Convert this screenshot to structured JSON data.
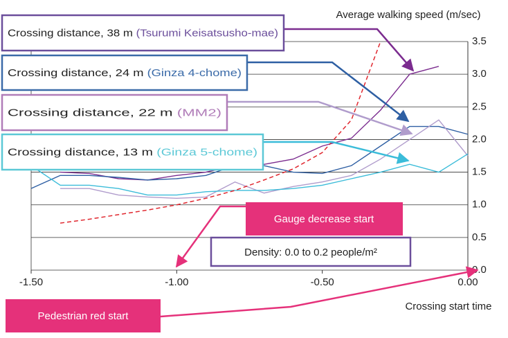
{
  "chart_data": {
    "type": "line",
    "y_label": "Average walking speed (m/sec)",
    "x_label": "Crossing start time",
    "x": [
      -1.5,
      -1.4,
      -1.3,
      -1.2,
      -1.1,
      -1.0,
      -0.9,
      -0.8,
      -0.7,
      -0.6,
      -0.5,
      -0.4,
      -0.3,
      -0.2,
      -0.1,
      0.0
    ],
    "series": [
      {
        "name": "Crossing distance, 38 m",
        "location": "(Tsurumi Keisatsusho-mae)",
        "color": "#7b2c8f",
        "border": "#6b4e9b",
        "values": [
          null,
          1.5,
          1.48,
          1.4,
          1.38,
          1.45,
          1.5,
          1.6,
          1.62,
          1.7,
          1.9,
          2.02,
          2.45,
          3.0,
          3.12,
          null
        ]
      },
      {
        "name": "Crossing distance, 24 m",
        "location": "(Ginza 4-chome)",
        "color": "#2e5fa3",
        "border": "#3a6aa8",
        "values": [
          1.25,
          1.45,
          1.45,
          1.42,
          1.38,
          1.4,
          1.45,
          1.6,
          1.6,
          1.5,
          1.48,
          1.6,
          1.9,
          2.2,
          2.2,
          2.08
        ]
      },
      {
        "name": "Crossing distance, 22 m",
        "location": "(MM2)",
        "color": "#b09ccc",
        "border": "#b07cb8",
        "values": [
          null,
          1.25,
          1.25,
          1.15,
          1.12,
          1.1,
          1.12,
          1.35,
          1.18,
          1.28,
          1.35,
          1.45,
          1.7,
          2.0,
          2.3,
          1.75
        ]
      },
      {
        "name": "Crossing distance, 13 m",
        "location": "(Ginza 5-chome)",
        "color": "#3bbcd9",
        "border": "#5bc8d6",
        "values": [
          1.6,
          1.3,
          1.3,
          1.25,
          1.15,
          1.15,
          1.2,
          1.22,
          1.22,
          1.25,
          1.3,
          1.4,
          1.5,
          1.62,
          1.5,
          1.78
        ]
      },
      {
        "color": "#e0262e",
        "dashed": true,
        "values": [
          null,
          0.72,
          0.78,
          0.85,
          0.92,
          1.0,
          1.1,
          1.22,
          1.38,
          1.55,
          1.8,
          2.3,
          3.5,
          null,
          null,
          null
        ]
      }
    ],
    "xlim": [
      -1.5,
      0.0
    ],
    "xticks": [
      {
        "value": -1.5,
        "label": "-1.50"
      },
      {
        "value": -1.0,
        "label": "-1.00"
      },
      {
        "value": -0.5,
        "label": "-0.50"
      },
      {
        "value": 0.0,
        "label": "0.00"
      }
    ],
    "ylim": [
      0,
      3.5
    ],
    "yticks": [
      {
        "value": 0,
        "label": "0.0"
      },
      {
        "value": 0.5,
        "label": "0.5"
      },
      {
        "value": 1.0,
        "label": "1.0"
      },
      {
        "value": 1.5,
        "label": "1.5"
      },
      {
        "value": 2.0,
        "label": "2.0"
      },
      {
        "value": 2.5,
        "label": "2.5"
      },
      {
        "value": 3.0,
        "label": "3.0"
      },
      {
        "value": 3.5,
        "label": "3.5"
      }
    ],
    "grid": true,
    "annotations": {
      "gauge": "Gauge decrease start",
      "red": "Pedestrian red start",
      "density": "Density: 0.0 to 0.2 people/m²"
    }
  }
}
